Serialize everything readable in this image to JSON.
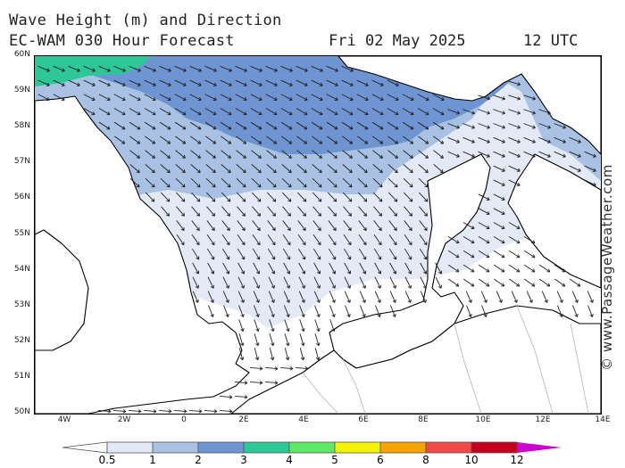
{
  "title": {
    "line1": "Wave Height (m) and Direction",
    "line2": "EC-WAM 030 Hour Forecast",
    "date": "Fri 02 May 2025",
    "time": "12 UTC"
  },
  "credit": "© www.PassageWeather.com",
  "latitudes": [
    "60N",
    "59N",
    "58N",
    "57N",
    "56N",
    "55N",
    "54N",
    "53N",
    "52N",
    "51N",
    "50N"
  ],
  "longitudes": [
    "4W",
    "2W",
    "0",
    "2E",
    "4E",
    "6E",
    "8E",
    "10E",
    "12E",
    "14E"
  ],
  "scale": {
    "labels": [
      "0.5",
      "1",
      "2",
      "3",
      "4",
      "5",
      "6",
      "8",
      "10",
      "12"
    ],
    "colors": [
      "#e3eaf6",
      "#a9c2e4",
      "#6e95d2",
      "#2ec896",
      "#5ee865",
      "#f3f300",
      "#f7a300",
      "#f24848",
      "#c4001c",
      "#cc00cc"
    ]
  },
  "colors": {
    "land": "#ffffff",
    "band_0_5_1": "#e3eaf6",
    "band_1_2": "#a9c2e4",
    "band_2_3": "#6e95d2",
    "band_3_4": "#2ec896"
  }
}
